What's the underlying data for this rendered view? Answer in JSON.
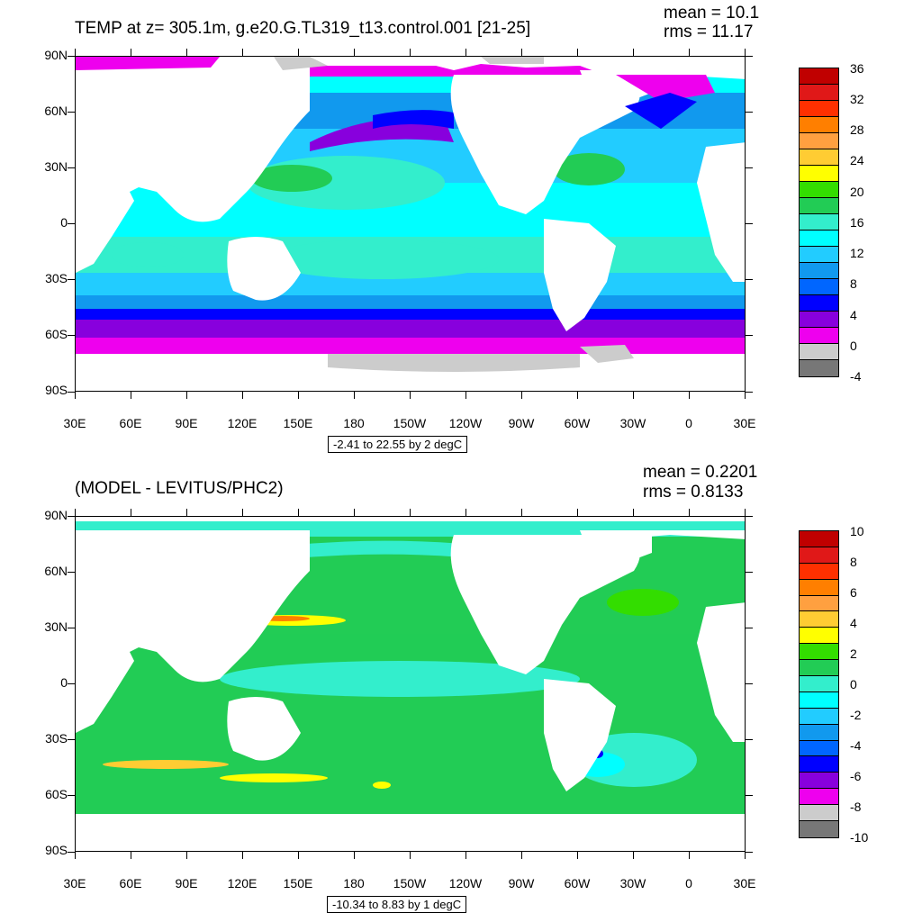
{
  "panels": [
    {
      "title": "TEMP at z= 305.1m, g.e20.G.TL319_t13.control.001 [21-25]",
      "mean_text": "mean = 10.1",
      "rms_text": "rms = 11.17",
      "contour_info": "-2.41 to 22.55 by 2 degC",
      "y_labels": [
        "90N",
        "60N",
        "30N",
        "0",
        "30S",
        "60S",
        "90S"
      ],
      "x_labels": [
        "30E",
        "60E",
        "90E",
        "120E",
        "150E",
        "180",
        "150W",
        "120W",
        "90W",
        "60W",
        "30W",
        "0",
        "30E"
      ],
      "colorbar_labels": [
        "36",
        "32",
        "28",
        "24",
        "20",
        "16",
        "12",
        "8",
        "4",
        "0",
        "-4"
      ],
      "colors": [
        "#c00000",
        "#e01818",
        "#ff3000",
        "#ff7f00",
        "#ffa040",
        "#ffcc33",
        "#ffff00",
        "#33dd00",
        "#22cc55",
        "#33eecc",
        "#00ffff",
        "#22ccff",
        "#1199ee",
        "#0066ff",
        "#0000ff",
        "#8800dd",
        "#ee00ee",
        "#cccccc",
        "#777777"
      ]
    },
    {
      "title": "(MODEL - LEVITUS/PHC2)",
      "mean_text": "mean = 0.2201",
      "rms_text": "rms = 0.8133",
      "contour_info": "-10.34 to 8.83 by 1 degC",
      "y_labels": [
        "90N",
        "60N",
        "30N",
        "0",
        "30S",
        "60S",
        "90S"
      ],
      "x_labels": [
        "30E",
        "60E",
        "90E",
        "120E",
        "150E",
        "180",
        "150W",
        "120W",
        "90W",
        "60W",
        "30W",
        "0",
        "30E"
      ],
      "colorbar_labels": [
        "10",
        "8",
        "6",
        "4",
        "2",
        "0",
        "-2",
        "-4",
        "-6",
        "-8",
        "-10"
      ],
      "colors": [
        "#c00000",
        "#e01818",
        "#ff3000",
        "#ff7f00",
        "#ffa040",
        "#ffcc33",
        "#ffff00",
        "#33dd00",
        "#22cc55",
        "#33eecc",
        "#00ffff",
        "#22ccff",
        "#1199ee",
        "#0066ff",
        "#0000ff",
        "#8800dd",
        "#ee00ee",
        "#cccccc",
        "#777777"
      ]
    }
  ]
}
